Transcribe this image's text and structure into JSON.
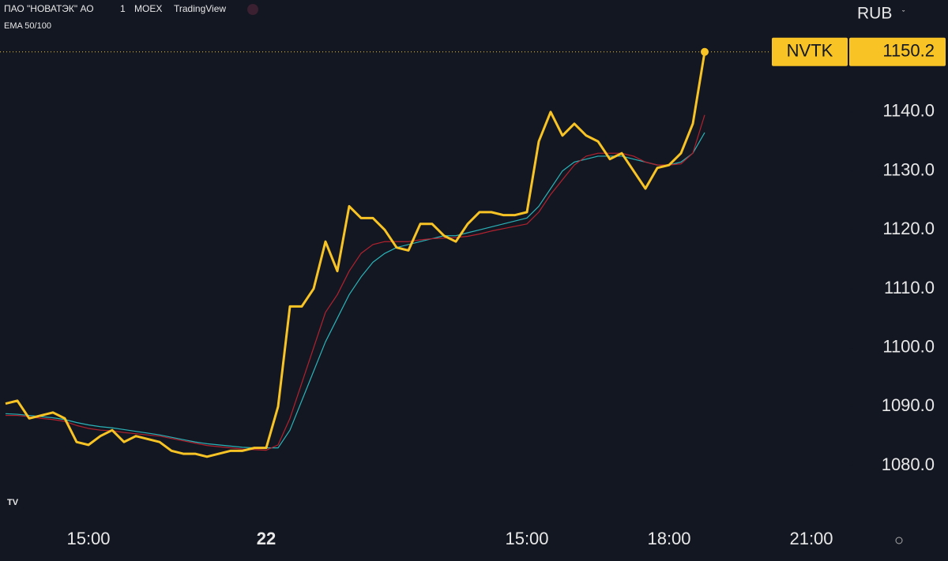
{
  "chart_data": {
    "type": "line",
    "header": {
      "symbol_name": "ПАО \"НОВАТЭК\" АО",
      "interval": "1",
      "exchange": "MOEX",
      "source": "TradingView",
      "indicator": "EMA 50/100",
      "currency": "RUB",
      "ticker": "NVTK"
    },
    "categories": [
      null,
      null,
      null,
      null,
      null,
      null,
      null,
      "15:00",
      null,
      null,
      null,
      null,
      null,
      null,
      null,
      null,
      null,
      null,
      null,
      null,
      null,
      null,
      "22",
      null,
      null,
      null,
      null,
      null,
      null,
      null,
      null,
      null,
      null,
      null,
      null,
      null,
      null,
      null,
      null,
      null,
      null,
      null,
      null,
      null,
      "15:00",
      null,
      null,
      null,
      null,
      null,
      null,
      null,
      null,
      null,
      null,
      null,
      "18:00",
      null,
      null,
      null,
      null,
      null,
      null,
      null,
      null,
      null,
      null,
      null,
      "21:00",
      null,
      null
    ],
    "series": [
      {
        "color": "#f7c325",
        "values": [
          1090.5,
          1091,
          1088,
          1088.5,
          1089,
          1088,
          1084,
          1083.5,
          1085,
          1086,
          1084,
          1085,
          1084.5,
          1084,
          1082.5,
          1082,
          1082,
          1081.5,
          1082,
          1082.5,
          1082.5,
          1083,
          1083,
          1090,
          1107,
          1107,
          1110,
          1118,
          1113,
          1124,
          1122,
          1122,
          1120,
          1117,
          1116.5,
          1121,
          1121,
          1119,
          1118,
          1121,
          1123,
          1123,
          1122.5,
          1122.5,
          1123,
          1135,
          1140,
          1136,
          1138,
          1136,
          1135,
          1132,
          1133,
          1130,
          1127,
          1130.5,
          1131,
          1133,
          1138,
          1150.2,
          null,
          null,
          null,
          null,
          null,
          null,
          null,
          null,
          null,
          null,
          null
        ]
      },
      {
        "color": "#b2222e",
        "values": [
          1088.5,
          1088.5,
          1088.3,
          1088,
          1087.8,
          1087.5,
          1086.8,
          1086.3,
          1086,
          1085.9,
          1085.6,
          1085.4,
          1085.2,
          1085,
          1084.6,
          1084.2,
          1083.8,
          1083.4,
          1083.2,
          1083,
          1082.8,
          1082.7,
          1082.6,
          1083.5,
          1088,
          1094,
          1100,
          1106,
          1109,
          1113,
          1116,
          1117.5,
          1118,
          1118,
          1118,
          1118.3,
          1118.5,
          1118.6,
          1118.7,
          1118.9,
          1119.3,
          1119.8,
          1120.2,
          1120.6,
          1121,
          1123,
          1126,
          1128.5,
          1131,
          1132.5,
          1133,
          1133,
          1133,
          1132.5,
          1131.5,
          1131,
          1131,
          1131.2,
          1133,
          1139.5,
          null,
          null,
          null,
          null,
          null,
          null,
          null,
          null,
          null,
          null,
          null
        ]
      },
      {
        "color": "#2bb3b8",
        "values": [
          1088.8,
          1088.7,
          1088.5,
          1088.3,
          1088.1,
          1087.8,
          1087.3,
          1086.9,
          1086.6,
          1086.4,
          1086.1,
          1085.8,
          1085.5,
          1085.2,
          1084.8,
          1084.4,
          1084,
          1083.7,
          1083.5,
          1083.3,
          1083.1,
          1083,
          1083,
          1083,
          1086,
          1091,
          1096,
          1101,
          1105,
          1109,
          1112,
          1114.5,
          1116,
          1117,
          1117.5,
          1118,
          1118.5,
          1119,
          1119,
          1119.5,
          1120,
          1120.5,
          1121,
          1121.5,
          1122,
          1124,
          1127,
          1130,
          1131.5,
          1132,
          1132.5,
          1132.5,
          1132.5,
          1132,
          1131.5,
          1131,
          1131,
          1131.5,
          1133,
          1136.5,
          null,
          null,
          null,
          null,
          null,
          null,
          null,
          null,
          null,
          null,
          null
        ]
      }
    ],
    "ylim": [
      1071.3,
      1159
    ],
    "yticks": [
      {
        "value": 1080,
        "label": "1080.0"
      },
      {
        "value": 1090,
        "label": "1090.0"
      },
      {
        "value": 1100,
        "label": "1100.0"
      },
      {
        "value": 1110,
        "label": "1110.0"
      },
      {
        "value": 1120,
        "label": "1120.0"
      },
      {
        "value": 1130,
        "label": "1130.0"
      },
      {
        "value": 1140,
        "label": "1140.0"
      }
    ]
  }
}
